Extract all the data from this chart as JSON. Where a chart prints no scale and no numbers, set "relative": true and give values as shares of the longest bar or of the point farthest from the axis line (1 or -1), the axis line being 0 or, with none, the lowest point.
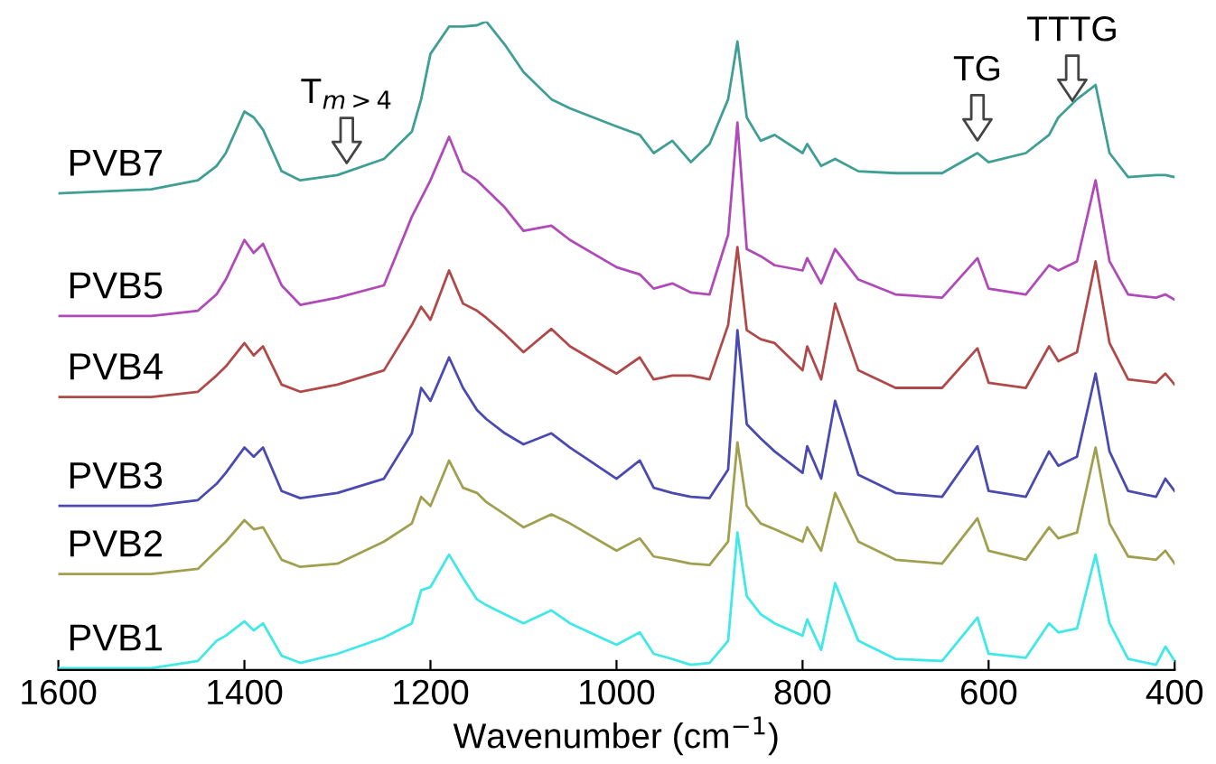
{
  "chart_data": {
    "type": "line",
    "relative": true,
    "xlabel": "Wavenumber (cm$^{−1}$)",
    "x": [
      1600,
      1500,
      1450,
      1430,
      1420,
      1400,
      1390,
      1380,
      1360,
      1340,
      1300,
      1250,
      1220,
      1210,
      1200,
      1180,
      1165,
      1150,
      1140,
      1120,
      1100,
      1070,
      1050,
      1000,
      975,
      960,
      940,
      920,
      900,
      880,
      870,
      860,
      845,
      830,
      800,
      795,
      780,
      765,
      740,
      700,
      650,
      612,
      600,
      560,
      535,
      525,
      505,
      485,
      470,
      450,
      420,
      410,
      400
    ],
    "xlim": [
      1600,
      400
    ],
    "xticks": [
      1600,
      1400,
      1200,
      1000,
      800,
      600,
      400
    ],
    "legend": false,
    "grid": false,
    "marker": "none",
    "line_style": "solid",
    "series": [
      {
        "name": "PVB7",
        "color": "#3f9f94",
        "values": [
          0.735,
          0.741,
          0.755,
          0.777,
          0.797,
          0.861,
          0.852,
          0.833,
          0.769,
          0.755,
          0.763,
          0.788,
          0.83,
          0.88,
          0.95,
          0.992,
          0.992,
          0.994,
          1,
          0.964,
          0.922,
          0.88,
          0.866,
          0.838,
          0.825,
          0.797,
          0.816,
          0.783,
          0.811,
          0.88,
          0.969,
          0.852,
          0.816,
          0.825,
          0.797,
          0.811,
          0.777,
          0.788,
          0.769,
          0.766,
          0.766,
          0.797,
          0.783,
          0.797,
          0.825,
          0.852,
          0.88,
          0.902,
          0.797,
          0.76,
          0.763,
          0.763,
          0.76
        ]
      },
      {
        "name": "PVB5",
        "color": "#b04ab8",
        "values": [
          0.546,
          0.546,
          0.554,
          0.579,
          0.602,
          0.663,
          0.643,
          0.657,
          0.593,
          0.563,
          0.574,
          0.593,
          0.699,
          0.727,
          0.755,
          0.822,
          0.769,
          0.755,
          0.741,
          0.713,
          0.677,
          0.685,
          0.663,
          0.621,
          0.61,
          0.588,
          0.596,
          0.582,
          0.579,
          0.671,
          0.844,
          0.649,
          0.638,
          0.624,
          0.616,
          0.635,
          0.596,
          0.649,
          0.602,
          0.579,
          0.574,
          0.635,
          0.588,
          0.579,
          0.624,
          0.616,
          0.63,
          0.755,
          0.63,
          0.579,
          0.574,
          0.579,
          0.571
        ]
      },
      {
        "name": "PVB4",
        "color": "#b04a4a",
        "values": [
          0.421,
          0.421,
          0.429,
          0.454,
          0.468,
          0.504,
          0.485,
          0.499,
          0.44,
          0.429,
          0.44,
          0.462,
          0.532,
          0.56,
          0.54,
          0.616,
          0.565,
          0.554,
          0.543,
          0.518,
          0.49,
          0.526,
          0.499,
          0.457,
          0.482,
          0.448,
          0.454,
          0.454,
          0.448,
          0.532,
          0.652,
          0.524,
          0.51,
          0.504,
          0.462,
          0.499,
          0.448,
          0.565,
          0.462,
          0.435,
          0.435,
          0.496,
          0.443,
          0.435,
          0.499,
          0.476,
          0.49,
          0.63,
          0.504,
          0.448,
          0.443,
          0.457,
          0.44
        ]
      },
      {
        "name": "PVB3",
        "color": "#4a4ab0",
        "values": [
          0.253,
          0.253,
          0.262,
          0.287,
          0.304,
          0.343,
          0.329,
          0.343,
          0.276,
          0.265,
          0.273,
          0.295,
          0.365,
          0.435,
          0.415,
          0.482,
          0.435,
          0.401,
          0.387,
          0.365,
          0.348,
          0.365,
          0.343,
          0.295,
          0.323,
          0.281,
          0.273,
          0.267,
          0.265,
          0.309,
          0.524,
          0.379,
          0.357,
          0.337,
          0.304,
          0.345,
          0.295,
          0.415,
          0.301,
          0.273,
          0.267,
          0.345,
          0.276,
          0.267,
          0.337,
          0.315,
          0.329,
          0.457,
          0.337,
          0.276,
          0.267,
          0.295,
          0.276
        ]
      },
      {
        "name": "PVB2",
        "color": "#a0a050",
        "values": [
          0.148,
          0.148,
          0.156,
          0.184,
          0.198,
          0.231,
          0.217,
          0.22,
          0.17,
          0.159,
          0.164,
          0.198,
          0.226,
          0.267,
          0.253,
          0.323,
          0.281,
          0.273,
          0.259,
          0.24,
          0.22,
          0.24,
          0.226,
          0.184,
          0.203,
          0.175,
          0.17,
          0.164,
          0.162,
          0.198,
          0.351,
          0.253,
          0.226,
          0.217,
          0.198,
          0.22,
          0.184,
          0.273,
          0.198,
          0.17,
          0.164,
          0.234,
          0.184,
          0.17,
          0.22,
          0.203,
          0.212,
          0.343,
          0.226,
          0.175,
          0.17,
          0.184,
          0.164
        ]
      },
      {
        "name": "PVB1",
        "color": "#40e8e8",
        "values": [
          0.003,
          0.003,
          0.014,
          0.045,
          0.053,
          0.075,
          0.061,
          0.072,
          0.022,
          0.011,
          0.025,
          0.05,
          0.072,
          0.123,
          0.128,
          0.178,
          0.142,
          0.109,
          0.1,
          0.086,
          0.072,
          0.092,
          0.072,
          0.039,
          0.058,
          0.025,
          0.017,
          0.008,
          0.011,
          0.045,
          0.212,
          0.114,
          0.086,
          0.072,
          0.053,
          0.078,
          0.031,
          0.134,
          0.045,
          0.017,
          0.014,
          0.081,
          0.025,
          0.019,
          0.072,
          0.058,
          0.064,
          0.178,
          0.072,
          0.017,
          0.008,
          0.036,
          0.014
        ]
      }
    ],
    "annotations": [
      {
        "text": "T$_{m>4}$",
        "x": 1290,
        "y": 0.77
      },
      {
        "text": "TG",
        "x": 612,
        "y": 0.805
      },
      {
        "text": "TTTG",
        "x": 510,
        "y": 0.866
      }
    ]
  }
}
